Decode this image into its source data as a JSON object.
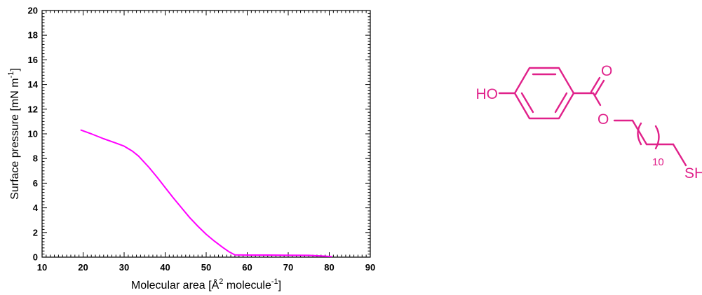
{
  "chart_data": {
    "type": "line",
    "title": "",
    "xlabel": {
      "main": "Molecular area [Å",
      "sup1": "2",
      "mid": " molecule",
      "sup2": "-1",
      "end": "]"
    },
    "ylabel": {
      "main": "Surface pressure [mN m",
      "sup": "-1",
      "end": "]"
    },
    "xlim": [
      10,
      90
    ],
    "ylim": [
      0,
      20
    ],
    "xticks": [
      10,
      20,
      30,
      40,
      50,
      60,
      70,
      80,
      90
    ],
    "yticks": [
      0,
      2,
      4,
      6,
      8,
      10,
      12,
      14,
      16,
      18,
      20
    ],
    "grid": false,
    "legend": "none",
    "series": [
      {
        "color": "#ff00ff",
        "x": [
          19.5,
          22,
          25,
          28,
          30,
          32,
          33.5,
          36,
          38,
          40,
          42,
          44,
          46,
          48,
          50,
          52,
          54,
          55.5,
          57,
          60,
          65,
          70,
          75,
          78,
          80.5
        ],
        "y": [
          10.3,
          10.0,
          9.6,
          9.25,
          9.0,
          8.6,
          8.2,
          7.3,
          6.5,
          5.65,
          4.8,
          4.0,
          3.2,
          2.5,
          1.85,
          1.3,
          0.8,
          0.45,
          0.18,
          0.17,
          0.17,
          0.16,
          0.15,
          0.1,
          0.05
        ]
      }
    ]
  },
  "molecule": {
    "color": "#e0218a",
    "labels": {
      "hydroxyl": "HO",
      "carbonyl_oxygen": "O",
      "ester_oxygen": "O",
      "repeat_count": "10",
      "thiol": "SH"
    }
  }
}
